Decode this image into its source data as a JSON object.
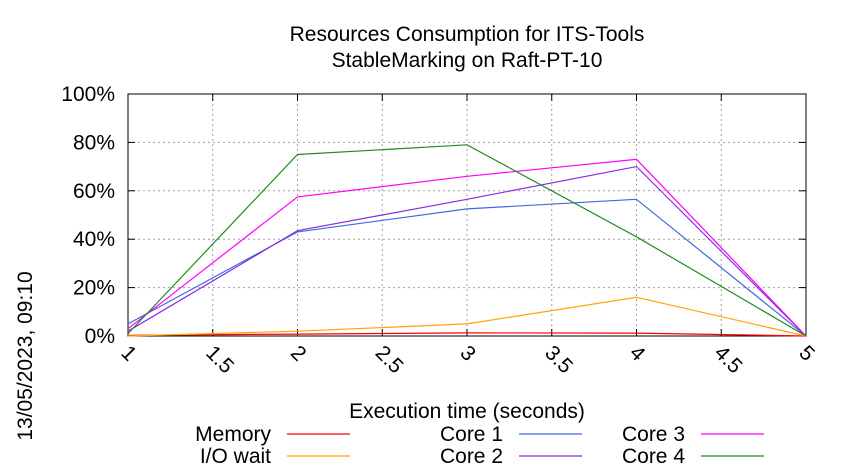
{
  "chart_data": {
    "type": "line",
    "title": "Resources Consumption for ITS-Tools",
    "subtitle": "StableMarking on Raft-PT-10",
    "xlabel": "Execution time (seconds)",
    "ylabel": "",
    "timestamp": "13/05/2023, 09:10",
    "x": [
      1,
      2,
      3,
      4,
      5
    ],
    "xlim": [
      1,
      5
    ],
    "ylim": [
      0,
      100
    ],
    "xticks": [
      1,
      1.5,
      2,
      2.5,
      3,
      3.5,
      4,
      4.5,
      5
    ],
    "xtick_labels": [
      "1",
      "1.5",
      "2",
      "2.5",
      "3",
      "3.5",
      "4",
      "4.5",
      "5"
    ],
    "yticks": [
      0,
      20,
      40,
      60,
      80,
      100
    ],
    "ytick_labels": [
      "0%",
      "20%",
      "40%",
      "60%",
      "80%",
      "100%"
    ],
    "grid": true,
    "legend_position": "bottom",
    "series": [
      {
        "name": "Memory",
        "color": "#ff0000",
        "values": [
          0.3,
          0.8,
          1.3,
          1.2,
          0
        ]
      },
      {
        "name": "I/O wait",
        "color": "#ffa500",
        "values": [
          0,
          2,
          5,
          16,
          0
        ]
      },
      {
        "name": "Core 1",
        "color": "#4169e1",
        "values": [
          5,
          43,
          52.5,
          56.5,
          0
        ]
      },
      {
        "name": "Core 2",
        "color": "#8a2be2",
        "values": [
          2,
          43.5,
          56.5,
          70,
          0
        ]
      },
      {
        "name": "Core 3",
        "color": "#ff00ff",
        "values": [
          3,
          57.5,
          66,
          73,
          0
        ]
      },
      {
        "name": "Core 4",
        "color": "#228b22",
        "values": [
          1,
          75,
          79,
          41,
          0
        ]
      }
    ]
  }
}
